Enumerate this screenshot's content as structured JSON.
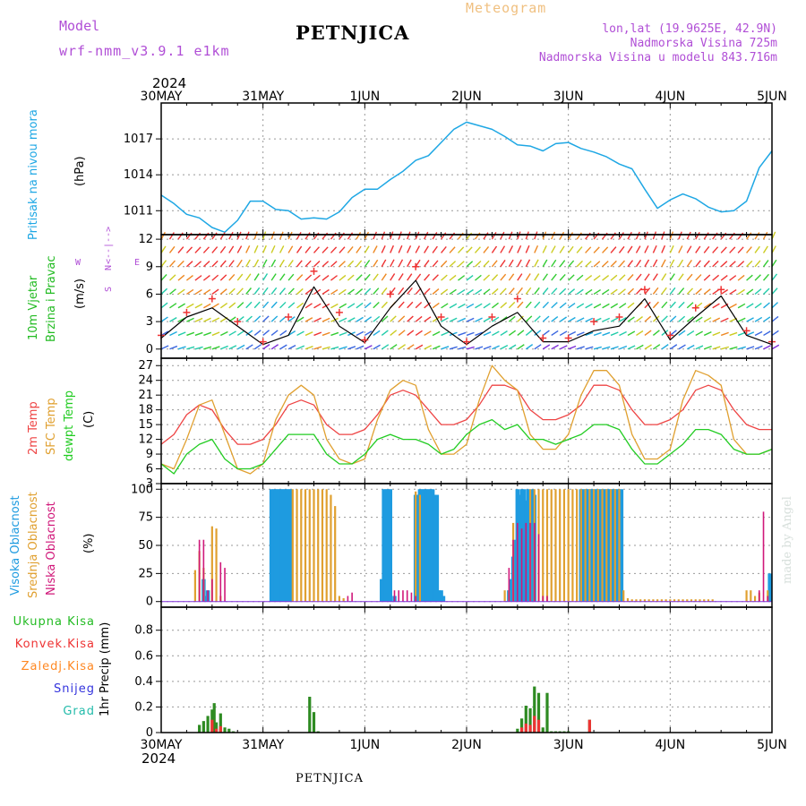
{
  "header": {
    "model_label": "Model",
    "model_name": "wrf-nmm_v3.9.1  e1km",
    "title": "PETNJICA",
    "meteogram_label": "Meteogram",
    "lonlat": "lon,lat (19.9625E, 42.9N)",
    "altitude": "Nadmorska Visina 725m",
    "model_altitude": "Nadmorska Visina u modelu 843.716m",
    "year": "2024"
  },
  "footer": {
    "station": "PETNJICA",
    "year": "2024",
    "watermark": "made by Angel"
  },
  "days": [
    "30MAY",
    "31MAY",
    "1JUN",
    "2JUN",
    "3JUN",
    "4JUN",
    "5JUN"
  ],
  "colors": {
    "pressure": "#1ea7e4",
    "wind_label": "#22bb22",
    "temp2m": "#ee4444",
    "sfc": "#e0a030",
    "dewpt": "#22cc22",
    "high_cloud": "#1e9be0",
    "mid_cloud": "#e0a030",
    "low_cloud": "#d0187a",
    "total_precip": "#2e8b22",
    "convective": "#ee3333",
    "frozen": "#ff8822",
    "snow": "#3333dd",
    "graupel": "#22bbaa"
  },
  "labels": {
    "pressure": [
      "Pritisak na nivou mora",
      "(hPa)"
    ],
    "wind": [
      "10m Vjetar",
      "Brzina i Pravac",
      "(m/s)"
    ],
    "wind_compass": [
      "N",
      "<--|-->",
      "S"
    ],
    "wind_we": [
      "W",
      "E"
    ],
    "temp": [
      "2m Temp",
      "SFC Temp",
      "dewpt Temp",
      "(C)"
    ],
    "cloud": [
      "Visoka Oblacnost",
      "Srednja Oblacnost",
      "Niska Oblacnost",
      "(%)"
    ],
    "precip_axis": "1hr Precip (mm)",
    "precip_legend": [
      "Ukupna Kisa",
      "Konvek.Kisa",
      "Zaledj.Kisa",
      "Snijeg",
      "Grad"
    ]
  },
  "chart_data": [
    {
      "type": "line",
      "name": "pressure",
      "ylabel": "(hPa)",
      "ylim": [
        1009,
        1020
      ],
      "yticks": [
        1011,
        1014,
        1017
      ],
      "x": [
        0,
        3,
        6,
        9,
        12,
        15,
        18,
        21,
        24,
        27,
        30,
        33,
        36,
        39,
        42,
        45,
        48,
        51,
        54,
        57,
        60,
        63,
        66,
        69,
        72,
        75,
        78,
        81,
        84,
        87,
        90,
        93,
        96,
        99,
        102,
        105,
        108,
        111,
        114,
        117,
        120,
        123,
        126,
        129,
        132,
        135,
        138,
        141,
        144
      ],
      "series": [
        {
          "values": [
            1012.3,
            1011.6,
            1010.7,
            1010.4,
            1009.6,
            1009.2,
            1010.2,
            1011.8,
            1011.8,
            1011.1,
            1011.0,
            1010.3,
            1010.4,
            1010.3,
            1010.9,
            1012.1,
            1012.8,
            1012.8,
            1013.6,
            1014.3,
            1015.2,
            1015.6,
            1016.7,
            1017.8,
            1018.4,
            1018.1,
            1017.8,
            1017.2,
            1016.5,
            1016.4,
            1016.0,
            1016.6,
            1016.7,
            1016.2,
            1015.9,
            1015.5,
            1014.9,
            1014.5,
            1012.8,
            1011.2,
            1011.9,
            1012.4,
            1012.0,
            1011.3,
            1010.9,
            1011.0,
            1011.8,
            1014.6,
            1016.0
          ]
        }
      ]
    },
    {
      "type": "line",
      "name": "wind",
      "ylabel": "(m/s)",
      "ylim": [
        -1,
        12.5
      ],
      "yticks": [
        0,
        3,
        6,
        9,
        12
      ],
      "x": [
        0,
        6,
        12,
        18,
        24,
        30,
        36,
        42,
        48,
        54,
        60,
        66,
        72,
        78,
        84,
        90,
        96,
        102,
        108,
        114,
        120,
        126,
        132,
        138,
        144
      ],
      "series": [
        {
          "values": [
            1.2,
            3.5,
            4.5,
            2.5,
            0.5,
            1.5,
            6.8,
            2.5,
            0.7,
            4.5,
            7.5,
            2.5,
            0.5,
            2.5,
            4.0,
            0.8,
            0.8,
            2.0,
            2.5,
            5.5,
            1.0,
            3.5,
            5.8,
            1.5,
            0.5
          ]
        },
        {
          "values": [
            1.5,
            4.0,
            5.5,
            3.0,
            0.8,
            3.5,
            8.5,
            4.0,
            1.0,
            6.0,
            9.0,
            3.5,
            0.8,
            3.5,
            5.5,
            1.2,
            1.2,
            3.0,
            3.5,
            6.5,
            1.5,
            4.5,
            6.5,
            2.0,
            0.8
          ]
        }
      ]
    },
    {
      "type": "line",
      "name": "temperature",
      "ylabel": "(C)",
      "ylim": [
        3,
        28.5
      ],
      "yticks": [
        3,
        6,
        9,
        12,
        15,
        18,
        21,
        24,
        27
      ],
      "x": [
        0,
        3,
        6,
        9,
        12,
        15,
        18,
        21,
        24,
        27,
        30,
        33,
        36,
        39,
        42,
        45,
        48,
        51,
        54,
        57,
        60,
        63,
        66,
        69,
        72,
        75,
        78,
        81,
        84,
        87,
        90,
        93,
        96,
        99,
        102,
        105,
        108,
        111,
        114,
        117,
        120,
        123,
        126,
        129,
        132,
        135,
        138,
        141,
        144
      ],
      "series": [
        {
          "name": "2m Temp",
          "values": [
            11,
            13,
            17,
            19,
            18,
            14,
            11,
            11,
            12,
            15,
            19,
            20,
            19,
            15,
            13,
            13,
            14,
            17,
            21,
            22,
            21,
            18,
            15,
            15,
            16,
            19,
            23,
            23,
            22,
            18,
            16,
            16,
            17,
            19,
            23,
            23,
            22,
            18,
            15,
            15,
            16,
            18,
            22,
            23,
            22,
            18,
            15,
            14,
            14
          ]
        },
        {
          "name": "SFC Temp",
          "values": [
            7,
            6,
            12,
            19,
            20,
            13,
            6,
            5,
            7,
            16,
            21,
            23,
            21,
            12,
            8,
            7,
            8,
            16,
            22,
            24,
            23,
            14,
            9,
            9,
            11,
            20,
            27,
            24,
            22,
            13,
            10,
            10,
            13,
            21,
            26,
            26,
            23,
            13,
            8,
            8,
            10,
            20,
            26,
            25,
            23,
            12,
            9,
            9,
            10
          ]
        },
        {
          "name": "dewpt Temp",
          "values": [
            7,
            5,
            9,
            11,
            12,
            8,
            6,
            6,
            7,
            10,
            13,
            13,
            13,
            9,
            7,
            7,
            9,
            12,
            13,
            12,
            12,
            11,
            9,
            10,
            13,
            15,
            16,
            14,
            15,
            12,
            12,
            11,
            12,
            13,
            15,
            15,
            14,
            10,
            7,
            7,
            9,
            11,
            14,
            14,
            13,
            10,
            9,
            9,
            10
          ]
        }
      ]
    },
    {
      "type": "bar",
      "name": "cloud",
      "ylabel": "(%)",
      "ylim": [
        -5,
        105
      ],
      "yticks": [
        0,
        25,
        50,
        75,
        100
      ],
      "series": [
        {
          "name": "Visoka Oblacnost",
          "x": [
            10,
            10.5,
            11,
            26,
            26.5,
            27,
            27.5,
            28,
            28.5,
            29,
            29.5,
            30,
            30.5,
            52,
            52.5,
            53,
            53.5,
            54,
            55,
            60,
            60.5,
            61,
            61.5,
            62,
            62.5,
            63,
            63.5,
            64,
            64.5,
            65,
            65.5,
            66,
            66.5,
            82,
            82.5,
            83,
            83.5,
            84,
            84.5,
            85,
            85.5,
            86,
            86.5,
            87,
            87.5,
            88,
            99,
            99.5,
            100,
            100.5,
            101,
            101.5,
            102,
            102.5,
            103,
            103.5,
            104,
            104.5,
            105,
            105.5,
            106,
            106.5,
            107,
            107.5,
            108,
            108.5,
            143.5
          ],
          "values": [
            20,
            5,
            10,
            100,
            100,
            100,
            100,
            100,
            100,
            100,
            100,
            100,
            100,
            20,
            100,
            100,
            100,
            100,
            5,
            95,
            95,
            100,
            100,
            100,
            100,
            100,
            100,
            100,
            95,
            95,
            10,
            10,
            5,
            10,
            20,
            40,
            55,
            100,
            95,
            100,
            100,
            90,
            100,
            70,
            100,
            95,
            100,
            100,
            100,
            100,
            100,
            100,
            100,
            100,
            100,
            100,
            100,
            100,
            100,
            100,
            100,
            100,
            100,
            100,
            100,
            100,
            25
          ]
        },
        {
          "name": "Srednja Oblacnost",
          "x": [
            8,
            9,
            10,
            12,
            13,
            14,
            31,
            32,
            33,
            34,
            35,
            36,
            37,
            38,
            39,
            40,
            41,
            42,
            43,
            60,
            61,
            81,
            82,
            83,
            87,
            88,
            89,
            90,
            91,
            92,
            93,
            94,
            95,
            96,
            97,
            98,
            99,
            100,
            101,
            102,
            103,
            104,
            105,
            106,
            107,
            108,
            109,
            110,
            111,
            112,
            113,
            114,
            115,
            116,
            117,
            118,
            119,
            120,
            121,
            122,
            123,
            124,
            125,
            126,
            127,
            128,
            129,
            130,
            138,
            139,
            140,
            141,
            143
          ],
          "values": [
            28,
            45,
            30,
            67,
            65,
            5,
            100,
            100,
            100,
            100,
            100,
            100,
            100,
            100,
            100,
            95,
            85,
            5,
            3,
            98,
            95,
            10,
            10,
            70,
            100,
            100,
            100,
            100,
            100,
            100,
            100,
            100,
            100,
            100,
            100,
            100,
            100,
            100,
            100,
            100,
            100,
            100,
            100,
            100,
            100,
            100,
            10,
            3,
            2,
            2,
            2,
            2,
            2,
            2,
            2,
            2,
            2,
            2,
            2,
            2,
            2,
            2,
            2,
            2,
            2,
            2,
            2,
            2,
            10,
            10,
            5,
            8,
            10
          ]
        },
        {
          "name": "Niska Oblacnost",
          "x": [
            9,
            10,
            11,
            12,
            14,
            15,
            44,
            45,
            55,
            56,
            57,
            58,
            59,
            60,
            82,
            83,
            84,
            85,
            86,
            87,
            88,
            89,
            90,
            91,
            141,
            142,
            143
          ],
          "values": [
            55,
            55,
            10,
            20,
            35,
            30,
            5,
            8,
            10,
            10,
            10,
            10,
            8,
            5,
            30,
            55,
            70,
            65,
            70,
            70,
            70,
            60,
            5,
            5,
            10,
            80,
            5
          ]
        }
      ]
    },
    {
      "type": "bar",
      "name": "precip",
      "ylabel": "1hr Precip (mm)",
      "ylim": [
        0,
        0.98
      ],
      "yticks": [
        0,
        0.2,
        0.4,
        0.6,
        0.8
      ],
      "series": [
        {
          "name": "Ukupna Kisa",
          "x": [
            9,
            10,
            11,
            12,
            12.5,
            13,
            14,
            15,
            16,
            17,
            35,
            36,
            37,
            84,
            85,
            86,
            87,
            88,
            89,
            90,
            91,
            92,
            93,
            94,
            95,
            96,
            101
          ],
          "values": [
            0.06,
            0.09,
            0.13,
            0.18,
            0.23,
            0.08,
            0.15,
            0.04,
            0.03,
            0.01,
            0.28,
            0.16,
            0.01,
            0.03,
            0.11,
            0.21,
            0.19,
            0.36,
            0.31,
            0.04,
            0.31,
            0.01,
            0.01,
            0.01,
            0.01,
            0.01,
            0.1
          ]
        },
        {
          "name": "Konvek.Kisa",
          "x": [
            12,
            13,
            14,
            85,
            86,
            87,
            88,
            89,
            101
          ],
          "values": [
            0.1,
            0.03,
            0.05,
            0.04,
            0.07,
            0.06,
            0.13,
            0.1,
            0.1
          ]
        }
      ]
    }
  ]
}
